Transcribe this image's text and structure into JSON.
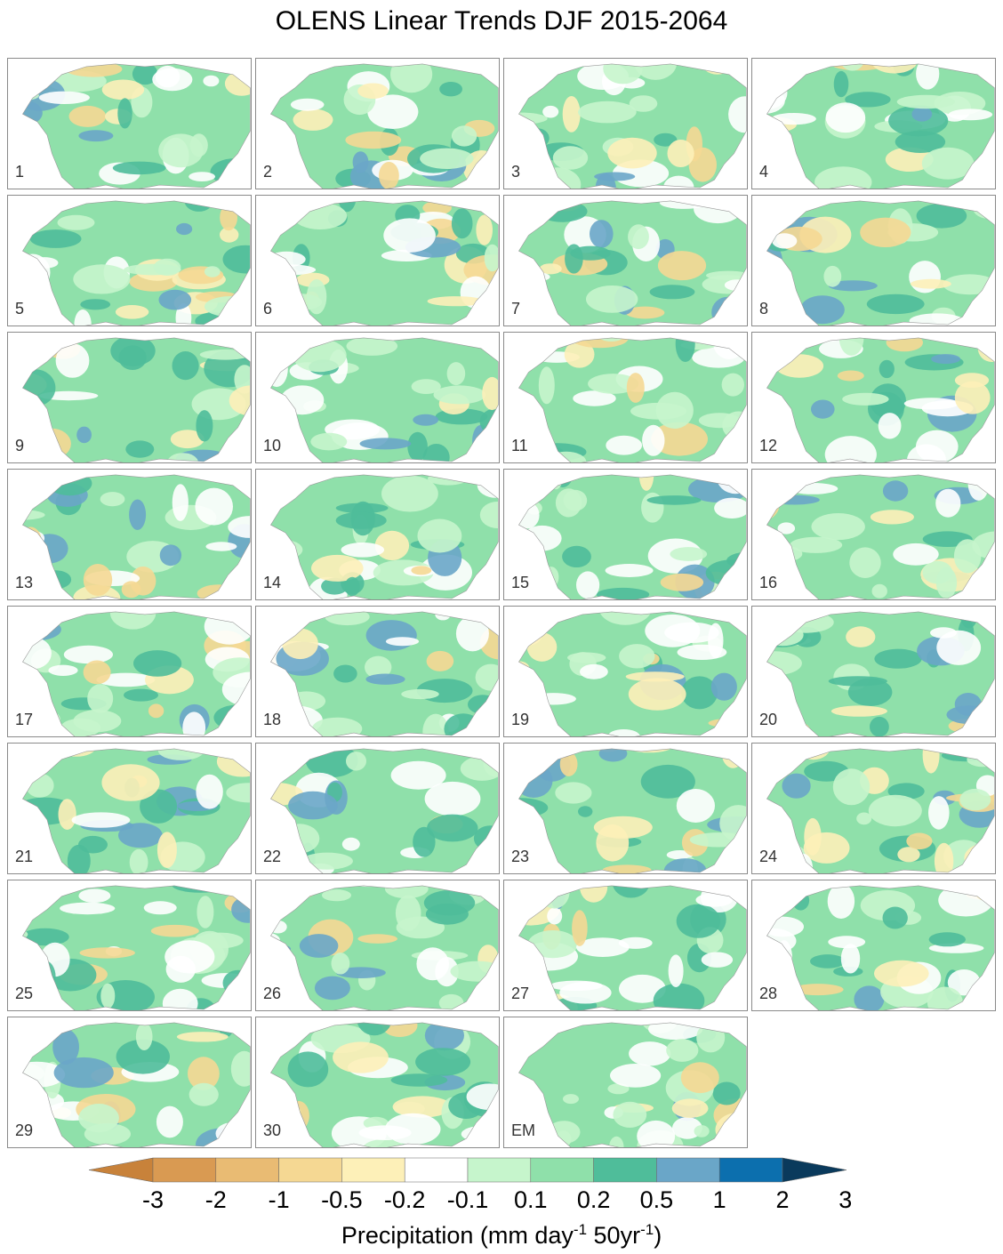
{
  "title": "OLENS Linear Trends DJF 2015-2064",
  "panels": [
    "1",
    "2",
    "3",
    "4",
    "5",
    "6",
    "7",
    "8",
    "9",
    "10",
    "11",
    "12",
    "13",
    "14",
    "15",
    "16",
    "17",
    "18",
    "19",
    "20",
    "21",
    "22",
    "23",
    "24",
    "25",
    "26",
    "27",
    "28",
    "29",
    "30",
    "EM"
  ],
  "colorbar": {
    "ticks": [
      "-3",
      "-2",
      "-1",
      "-0.5",
      "-0.2",
      "-0.1",
      "0.1",
      "0.2",
      "0.5",
      "1",
      "2",
      "3"
    ],
    "colors": [
      "#c8823a",
      "#d99a52",
      "#e9bb73",
      "#f5d893",
      "#fdf0b8",
      "#ffffff",
      "#c6f5cc",
      "#8fe0aa",
      "#4fbd9a",
      "#6aa6c8",
      "#0c6fae",
      "#0a3a5c"
    ],
    "label_main": "Precipitation (mm day",
    "label_sup1": "-1",
    "label_mid": " 50yr",
    "label_sup2": "-1",
    "label_end": ")"
  },
  "chart_data": {
    "type": "heatmap",
    "title": "OLENS Linear Trends DJF 2015-2064",
    "panel_labels": [
      "1",
      "2",
      "3",
      "4",
      "5",
      "6",
      "7",
      "8",
      "9",
      "10",
      "11",
      "12",
      "13",
      "14",
      "15",
      "16",
      "17",
      "18",
      "19",
      "20",
      "21",
      "22",
      "23",
      "24",
      "25",
      "26",
      "27",
      "28",
      "29",
      "30",
      "EM"
    ],
    "colorbar_levels": [
      -3,
      -2,
      -1,
      -0.5,
      -0.2,
      -0.1,
      0.1,
      0.2,
      0.5,
      1,
      2,
      3
    ],
    "colorbar_label": "Precipitation (mm day-1 50yr-1)",
    "extend": "both"
  }
}
